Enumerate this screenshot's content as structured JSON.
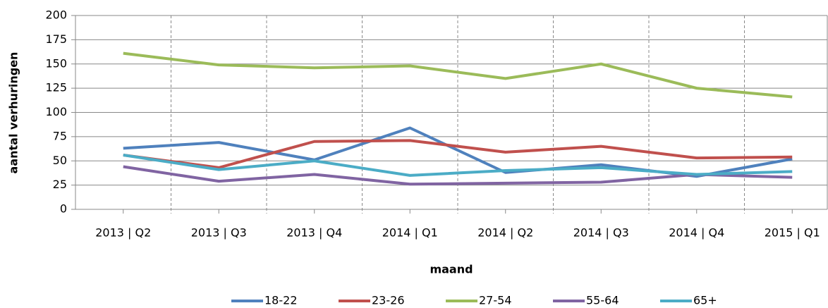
{
  "chart_data": {
    "type": "line",
    "xlabel": "maand",
    "ylabel": "aantal verhuringen",
    "categories": [
      "2013 | Q2",
      "2013 | Q3",
      "2013 | Q4",
      "2014 | Q1",
      "2014 | Q2",
      "2014 | Q3",
      "2014 | Q4",
      "2015 | Q1"
    ],
    "series": [
      {
        "name": "18-22",
        "color": "#4f81bd",
        "values": [
          63,
          69,
          51,
          84,
          38,
          46,
          34,
          52
        ]
      },
      {
        "name": "23-26",
        "color": "#c0504d",
        "values": [
          56,
          43,
          70,
          71,
          59,
          65,
          53,
          54
        ]
      },
      {
        "name": "27-54",
        "color": "#9bbb59",
        "values": [
          161,
          149,
          146,
          148,
          135,
          150,
          125,
          116
        ]
      },
      {
        "name": "55-64",
        "color": "#8064a2",
        "values": [
          44,
          29,
          36,
          26,
          27,
          28,
          36,
          33
        ]
      },
      {
        "name": "65+",
        "color": "#4bacc6",
        "values": [
          56,
          41,
          50,
          35,
          40,
          43,
          36,
          39
        ]
      }
    ],
    "ylim": [
      0,
      200
    ],
    "yticks": [
      0,
      25,
      50,
      75,
      100,
      125,
      150,
      175,
      200
    ],
    "grid": true,
    "legend": "bottom"
  }
}
